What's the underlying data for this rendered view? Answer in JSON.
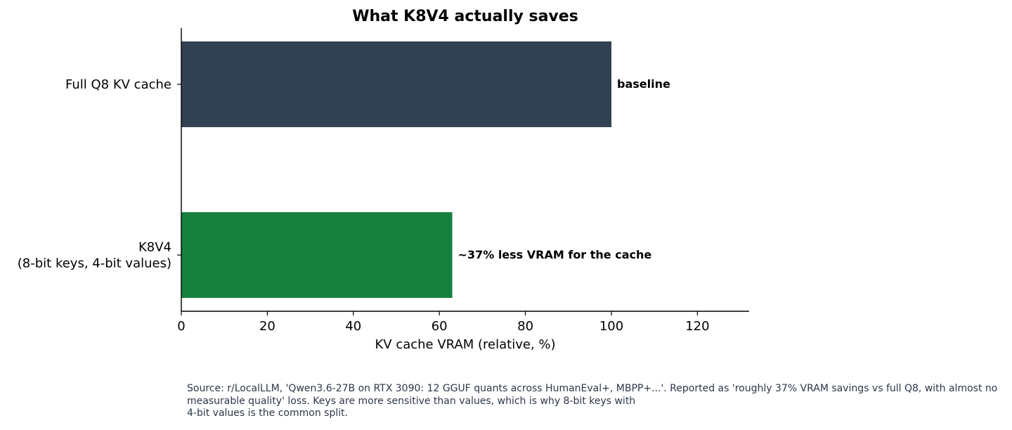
{
  "chart_data": {
    "type": "bar",
    "orientation": "horizontal",
    "title": "What K8V4 actually saves",
    "categories": [
      [
        "Full Q8 KV cache"
      ],
      [
        "K8V4",
        "(8-bit keys, 4-bit values)"
      ]
    ],
    "values": [
      100,
      63
    ],
    "bar_colors": [
      "#334155",
      "#16803c"
    ],
    "data_labels": [
      "baseline",
      "~37% less VRAM for the cache"
    ],
    "xlabel": "KV cache VRAM (relative, %)",
    "ylabel": "",
    "xlim": [
      0,
      132
    ],
    "xticks": [
      0,
      20,
      40,
      60,
      80,
      100,
      120
    ],
    "grid": false,
    "legend": "none"
  },
  "source_note": [
    "Source: r/LocalLLM, 'Qwen3.6-27B on RTX 3090: 12 GGUF quants across HumanEval+, MBPP+...'. Reported as 'roughly 37% VRAM savings vs full Q8, with almost no",
    "measurable quality' loss. Keys are more sensitive than values, which is why 8-bit keys with",
    "4-bit values is the common split."
  ]
}
